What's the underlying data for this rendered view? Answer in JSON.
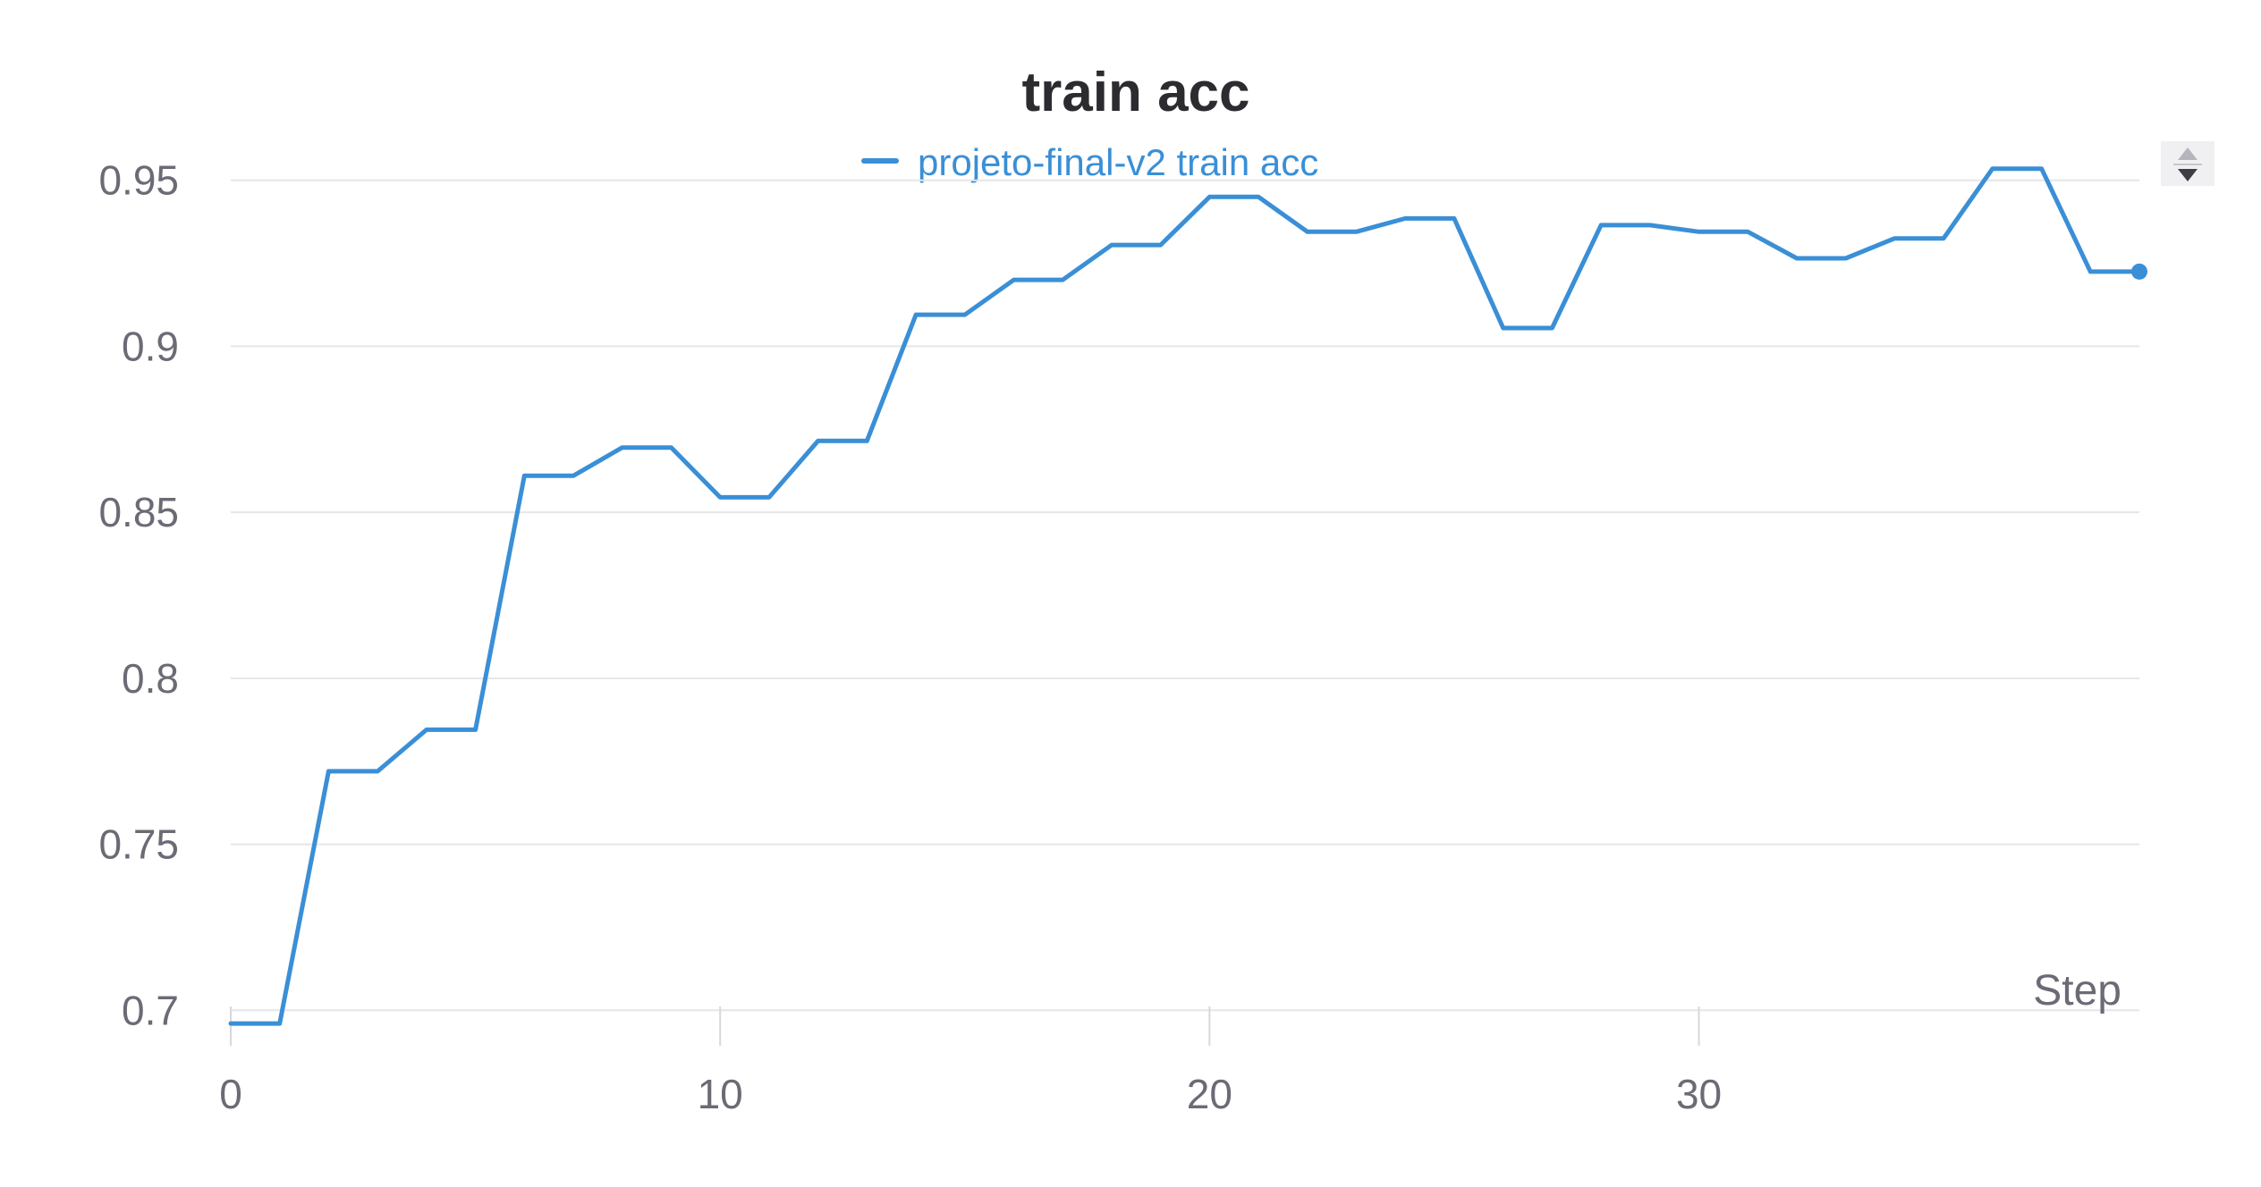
{
  "chart_data": {
    "type": "line",
    "title": "train acc",
    "xlabel": "Step",
    "ylabel": "",
    "xlim": [
      0,
      39
    ],
    "ylim": [
      0.692,
      0.972
    ],
    "x_ticks": [
      "0",
      "10",
      "20",
      "30"
    ],
    "y_ticks": [
      "0.7",
      "0.75",
      "0.8",
      "0.85",
      "0.9",
      "0.95"
    ],
    "grid": true,
    "legend_position": "top-center",
    "series": [
      {
        "name": "projeto-final-v2 train acc",
        "color": "#3a8fd6",
        "x": [
          0,
          1,
          2,
          3,
          4,
          5,
          6,
          7,
          8,
          9,
          10,
          11,
          12,
          13,
          14,
          15,
          16,
          17,
          18,
          19,
          20,
          21,
          22,
          23,
          24,
          25,
          26,
          27,
          28,
          29,
          30,
          31,
          32,
          33,
          34,
          35,
          36,
          37,
          38,
          39
        ],
        "values": [
          0.696,
          0.696,
          0.772,
          0.772,
          0.7845,
          0.7845,
          0.861,
          0.861,
          0.8695,
          0.8695,
          0.8545,
          0.8545,
          0.8715,
          0.8715,
          0.9095,
          0.9095,
          0.92,
          0.92,
          0.9305,
          0.9305,
          0.945,
          0.945,
          0.9345,
          0.9345,
          0.9385,
          0.9385,
          0.9055,
          0.9055,
          0.9365,
          0.9365,
          0.9345,
          0.9345,
          0.9265,
          0.9265,
          0.9325,
          0.9325,
          0.9535,
          0.9535,
          0.9225,
          0.9225
        ]
      }
    ]
  },
  "controls": {
    "scroll_icon": "up-down-arrows-icon"
  }
}
